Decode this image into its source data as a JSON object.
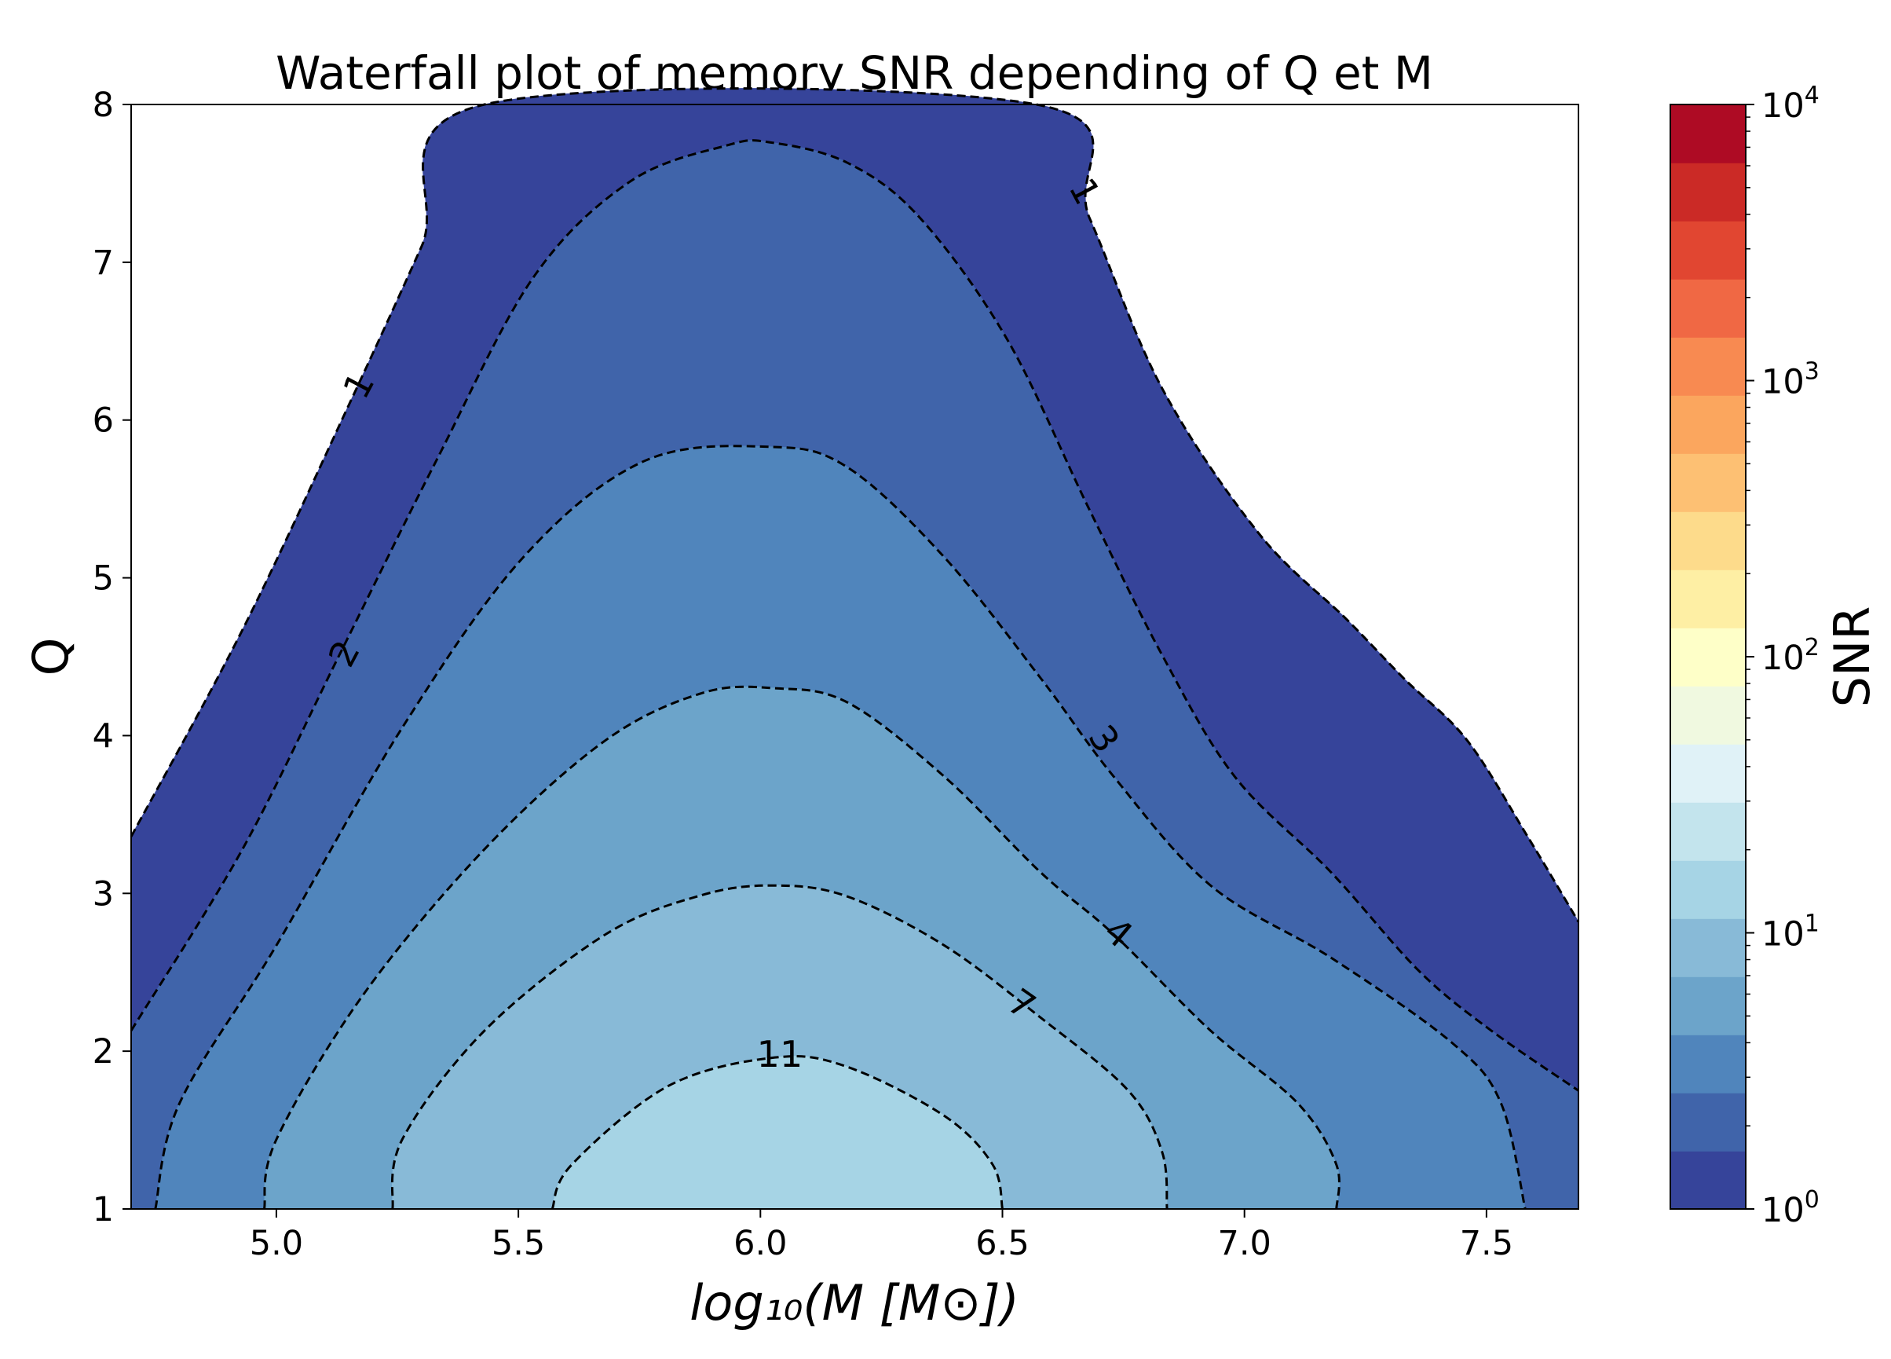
{
  "chart_data": {
    "type": "contour",
    "title": "Waterfall plot of memory SNR depending of Q et M",
    "xlabel": "log₁₀(M [M⊙])",
    "ylabel": "Q",
    "xlim": [
      4.7,
      7.69
    ],
    "ylim": [
      1,
      8
    ],
    "xticks": [
      "5.0",
      "5.5",
      "6.0",
      "6.5",
      "7.0",
      "7.5"
    ],
    "yticks": [
      "1",
      "2",
      "3",
      "4",
      "5",
      "6",
      "7",
      "8"
    ],
    "grid": false,
    "colormap": "RdYlBu_r",
    "colorbar": {
      "label": "SNR",
      "scale": "log",
      "range": [
        1,
        10000
      ],
      "tick_base": "10",
      "tick_exponents": [
        "0",
        "1",
        "2",
        "3",
        "4"
      ],
      "band_colors": [
        "#36449a",
        "#4064aa",
        "#5085bc",
        "#6ca4ca",
        "#88bad7",
        "#a6d4e5",
        "#c3e4ed",
        "#e0f2f7",
        "#f0f9e0",
        "#feffc8",
        "#feefa4",
        "#fddb8b",
        "#fdc073",
        "#fba65e",
        "#f88a51",
        "#f06844",
        "#e14631",
        "#cb2a26",
        "#ae0b24"
      ]
    },
    "contours": [
      {
        "label": "1",
        "level": 1,
        "points": [
          [
            4.7,
            3.36
          ],
          [
            4.93,
            4.67
          ],
          [
            5.155,
            6.13
          ],
          [
            5.3,
            7.1
          ],
          [
            5.43,
            8.0
          ],
          [
            6.57,
            8.0
          ],
          [
            6.68,
            7.28
          ],
          [
            6.83,
            6.2
          ],
          [
            7.03,
            5.28
          ],
          [
            7.21,
            4.74
          ],
          [
            7.33,
            4.36
          ],
          [
            7.46,
            3.97
          ],
          [
            7.585,
            3.36
          ],
          [
            7.69,
            2.82
          ]
        ]
      },
      {
        "label": "2",
        "level": 1.62,
        "points": [
          [
            4.7,
            2.13
          ],
          [
            4.93,
            3.28
          ],
          [
            5.13,
            4.51
          ],
          [
            5.33,
            5.74
          ],
          [
            5.53,
            6.9
          ],
          [
            5.73,
            7.51
          ],
          [
            5.93,
            7.74
          ],
          [
            6.02,
            7.76
          ],
          [
            6.18,
            7.63
          ],
          [
            6.33,
            7.28
          ],
          [
            6.51,
            6.51
          ],
          [
            6.68,
            5.43
          ],
          [
            6.83,
            4.51
          ],
          [
            6.98,
            3.74
          ],
          [
            7.18,
            3.13
          ],
          [
            7.36,
            2.51
          ],
          [
            7.51,
            2.13
          ],
          [
            7.69,
            1.75
          ]
        ]
      },
      {
        "label": "3",
        "level": 2.64,
        "points": [
          [
            4.75,
            1.0
          ],
          [
            4.8,
            1.67
          ],
          [
            5.0,
            2.67
          ],
          [
            5.26,
            4.05
          ],
          [
            5.51,
            5.13
          ],
          [
            5.76,
            5.74
          ],
          [
            6.02,
            5.83
          ],
          [
            6.18,
            5.7
          ],
          [
            6.38,
            5.13
          ],
          [
            6.58,
            4.36
          ],
          [
            6.73,
            3.74
          ],
          [
            6.93,
            3.05
          ],
          [
            7.18,
            2.59
          ],
          [
            7.43,
            2.05
          ],
          [
            7.53,
            1.67
          ],
          [
            7.58,
            1.0
          ]
        ]
      },
      {
        "label": "4",
        "level": 4.28,
        "points": [
          [
            4.975,
            1.0
          ],
          [
            5.0,
            1.44
          ],
          [
            5.18,
            2.36
          ],
          [
            5.43,
            3.28
          ],
          [
            5.68,
            3.97
          ],
          [
            5.88,
            4.27
          ],
          [
            6.03,
            4.3
          ],
          [
            6.18,
            4.21
          ],
          [
            6.38,
            3.74
          ],
          [
            6.58,
            3.13
          ],
          [
            6.73,
            2.74
          ],
          [
            6.93,
            2.13
          ],
          [
            7.11,
            1.67
          ],
          [
            7.19,
            1.28
          ],
          [
            7.19,
            1.0
          ]
        ]
      },
      {
        "label": "7",
        "level": 6.95,
        "points": [
          [
            5.24,
            1.0
          ],
          [
            5.26,
            1.44
          ],
          [
            5.43,
            2.13
          ],
          [
            5.68,
            2.74
          ],
          [
            5.88,
            2.99
          ],
          [
            6.03,
            3.05
          ],
          [
            6.18,
            2.98
          ],
          [
            6.38,
            2.67
          ],
          [
            6.58,
            2.21
          ],
          [
            6.76,
            1.75
          ],
          [
            6.83,
            1.36
          ],
          [
            6.84,
            1.0
          ]
        ]
      },
      {
        "label": "11",
        "level": 11.3,
        "points": [
          [
            5.57,
            1.0
          ],
          [
            5.61,
            1.28
          ],
          [
            5.81,
            1.78
          ],
          [
            6.03,
            1.96
          ],
          [
            6.18,
            1.9
          ],
          [
            6.38,
            1.59
          ],
          [
            6.48,
            1.28
          ],
          [
            6.5,
            1.0
          ]
        ]
      }
    ]
  }
}
